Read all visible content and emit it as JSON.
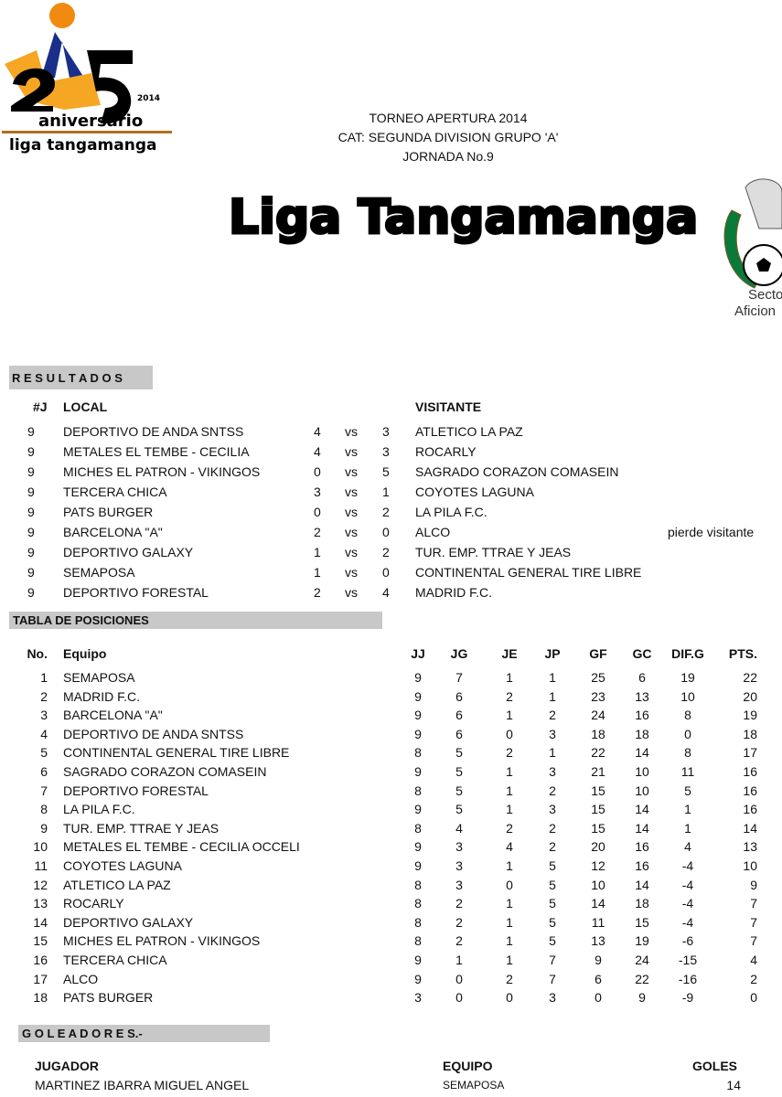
{
  "logo_left": {
    "text": "2 5 aniversario 2014 liga tangamanga"
  },
  "logo_right": {
    "text": "Federacion Mexicana Sector Aficionado"
  },
  "header": {
    "line1": "TORNEO APERTURA 2014",
    "line2": "CAT: SEGUNDA DIVISION GRUPO 'A'",
    "line3": "JORNADA No.9",
    "title": "Liga Tangamanga",
    "right_text1": "Secto",
    "right_text2": "Aficion"
  },
  "resultados": {
    "section_title": "R E S U L T A D O S",
    "col_j": "#J",
    "col_local": "LOCAL",
    "col_visitante": "VISITANTE",
    "rows": [
      [
        "9",
        "DEPORTIVO DE ANDA SNTSS",
        "4",
        "vs",
        "3",
        "ATLETICO LA PAZ",
        ""
      ],
      [
        "9",
        "METALES EL TEMBE - CECILIA",
        "4",
        "vs",
        "3",
        "ROCARLY",
        ""
      ],
      [
        "9",
        "MICHES EL PATRON - VIKINGOS",
        "0",
        "vs",
        "5",
        "SAGRADO CORAZON COMASEIN",
        ""
      ],
      [
        "9",
        "TERCERA CHICA",
        "3",
        "vs",
        "1",
        "COYOTES LAGUNA",
        ""
      ],
      [
        "9",
        "PATS BURGER",
        "0",
        "vs",
        "2",
        "LA PILA F.C.",
        ""
      ],
      [
        "9",
        "BARCELONA \"A\"",
        "2",
        "vs",
        "0",
        "ALCO",
        "pierde visitante"
      ],
      [
        "9",
        "DEPORTIVO GALAXY",
        "1",
        "vs",
        "2",
        "TUR. EMP. TTRAE Y JEAS",
        ""
      ],
      [
        "9",
        "SEMAPOSA",
        "1",
        "vs",
        "0",
        "CONTINENTAL GENERAL TIRE LIBRE",
        ""
      ],
      [
        "9",
        "DEPORTIVO FORESTAL",
        "2",
        "vs",
        "4",
        "MADRID F.C.",
        ""
      ]
    ]
  },
  "tabla": {
    "section_title": "TABLA DE POSICIONES",
    "headers": [
      "No.",
      "Equipo",
      "JJ",
      "JG",
      "JE",
      "JP",
      "GF",
      "GC",
      "DIF.G",
      "PTS."
    ],
    "rows": [
      [
        "1",
        "SEMAPOSA",
        "9",
        "7",
        "1",
        "1",
        "25",
        "6",
        "19",
        "22"
      ],
      [
        "2",
        "MADRID F.C.",
        "9",
        "6",
        "2",
        "1",
        "23",
        "13",
        "10",
        "20"
      ],
      [
        "3",
        "BARCELONA \"A\"",
        "9",
        "6",
        "1",
        "2",
        "24",
        "16",
        "8",
        "19"
      ],
      [
        "4",
        "DEPORTIVO DE ANDA SNTSS",
        "9",
        "6",
        "0",
        "3",
        "18",
        "18",
        "0",
        "18"
      ],
      [
        "5",
        "CONTINENTAL GENERAL TIRE LIBRE",
        "8",
        "5",
        "2",
        "1",
        "22",
        "14",
        "8",
        "17"
      ],
      [
        "6",
        "SAGRADO CORAZON COMASEIN",
        "9",
        "5",
        "1",
        "3",
        "21",
        "10",
        "11",
        "16"
      ],
      [
        "7",
        "DEPORTIVO FORESTAL",
        "8",
        "5",
        "1",
        "2",
        "15",
        "10",
        "5",
        "16"
      ],
      [
        "8",
        "LA PILA F.C.",
        "9",
        "5",
        "1",
        "3",
        "15",
        "14",
        "1",
        "16"
      ],
      [
        "9",
        "TUR. EMP. TTRAE Y JEAS",
        "8",
        "4",
        "2",
        "2",
        "15",
        "14",
        "1",
        "14"
      ],
      [
        "10",
        "METALES EL TEMBE - CECILIA OCCELI",
        "9",
        "3",
        "4",
        "2",
        "20",
        "16",
        "4",
        "13"
      ],
      [
        "11",
        "COYOTES LAGUNA",
        "9",
        "3",
        "1",
        "5",
        "12",
        "16",
        "-4",
        "10"
      ],
      [
        "12",
        "ATLETICO LA PAZ",
        "8",
        "3",
        "0",
        "5",
        "10",
        "14",
        "-4",
        "9"
      ],
      [
        "13",
        "ROCARLY",
        "8",
        "2",
        "1",
        "5",
        "14",
        "18",
        "-4",
        "7"
      ],
      [
        "14",
        "DEPORTIVO GALAXY",
        "8",
        "2",
        "1",
        "5",
        "11",
        "15",
        "-4",
        "7"
      ],
      [
        "15",
        "MICHES EL PATRON - VIKINGOS",
        "8",
        "2",
        "1",
        "5",
        "13",
        "19",
        "-6",
        "7"
      ],
      [
        "16",
        "TERCERA CHICA",
        "9",
        "1",
        "1",
        "7",
        "9",
        "24",
        "-15",
        "4"
      ],
      [
        "17",
        "ALCO",
        "9",
        "0",
        "2",
        "7",
        "6",
        "22",
        "-16",
        "2"
      ],
      [
        "18",
        "PATS BURGER",
        "3",
        "0",
        "0",
        "3",
        "0",
        "9",
        "-9",
        "0"
      ]
    ]
  },
  "goleadores": {
    "section_title": "G O L E A D O R E S.-",
    "col_jugador": "JUGADOR",
    "col_equipo": "EQUIPO",
    "col_goles": "GOLES",
    "rows": [
      [
        "MARTINEZ IBARRA MIGUEL ANGEL",
        "SEMAPOSA",
        "14"
      ]
    ]
  }
}
